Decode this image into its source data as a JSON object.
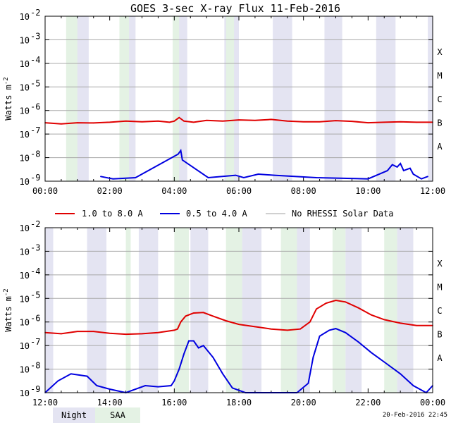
{
  "chart_data": {
    "type": "line",
    "title": "GOES 3-sec X-ray Flux   11-Feb-2016",
    "ylabel": "Watts m",
    "ylabel_sup": "-2",
    "y_scale": "log",
    "ylim_exp": [
      -9,
      -2
    ],
    "y_ticks": [
      {
        "exp": -2,
        "base": "10",
        "sup": "-2"
      },
      {
        "exp": -3,
        "base": "10",
        "sup": "-3"
      },
      {
        "exp": -4,
        "base": "10",
        "sup": "-4"
      },
      {
        "exp": -5,
        "base": "10",
        "sup": "-5"
      },
      {
        "exp": -6,
        "base": "10",
        "sup": "-6"
      },
      {
        "exp": -7,
        "base": "10",
        "sup": "-7"
      },
      {
        "exp": -8,
        "base": "10",
        "sup": "-8"
      },
      {
        "exp": -9,
        "base": "10",
        "sup": "-9"
      }
    ],
    "flare_classes": [
      {
        "label": "X",
        "exp": -3.5
      },
      {
        "label": "M",
        "exp": -4.5
      },
      {
        "label": "C",
        "exp": -5.5
      },
      {
        "label": "B",
        "exp": -6.5
      },
      {
        "label": "A",
        "exp": -7.5
      }
    ],
    "legend": [
      {
        "label": "1.0 to 8.0 A",
        "color": "#e00000"
      },
      {
        "label": "0.5 to 4.0 A",
        "color": "#0000e0"
      },
      {
        "label": "No RHESSI Solar Data",
        "color": "#a0a0a0"
      }
    ],
    "night_color": "#e4e4f2",
    "saa_color": "#e4f2e4",
    "footer": {
      "night_label": "Night",
      "saa_label": "SAA",
      "timestamp": "20-Feb-2016 22:45"
    },
    "panels": [
      {
        "name": "00:00-12:00",
        "xlim": [
          0,
          12
        ],
        "x_ticks": [
          {
            "h": 0,
            "label": "00:00"
          },
          {
            "h": 2,
            "label": "02:00"
          },
          {
            "h": 4,
            "label": "04:00"
          },
          {
            "h": 6,
            "label": "06:00"
          },
          {
            "h": 8,
            "label": "08:00"
          },
          {
            "h": 10,
            "label": "10:00"
          },
          {
            "h": 12,
            "label": "12:00"
          }
        ],
        "night": [
          [
            0.7,
            1.35
          ],
          [
            2.35,
            2.8
          ],
          [
            3.95,
            4.4
          ],
          [
            5.55,
            6.0
          ],
          [
            7.05,
            7.65
          ],
          [
            8.65,
            9.2
          ],
          [
            10.25,
            10.85
          ],
          [
            11.85,
            12.0
          ]
        ],
        "saa": [
          [
            0.65,
            1.0
          ],
          [
            2.3,
            2.6
          ],
          [
            3.95,
            4.15
          ],
          [
            5.6,
            5.85
          ]
        ],
        "long_series": [
          [
            0.0,
            -6.52
          ],
          [
            0.5,
            -6.57
          ],
          [
            1.0,
            -6.52
          ],
          [
            1.5,
            -6.53
          ],
          [
            2.0,
            -6.5
          ],
          [
            2.5,
            -6.45
          ],
          [
            3.0,
            -6.48
          ],
          [
            3.5,
            -6.45
          ],
          [
            3.85,
            -6.5
          ],
          [
            4.0,
            -6.45
          ],
          [
            4.15,
            -6.3
          ],
          [
            4.3,
            -6.45
          ],
          [
            4.6,
            -6.5
          ],
          [
            5.0,
            -6.42
          ],
          [
            5.5,
            -6.45
          ],
          [
            6.0,
            -6.4
          ],
          [
            6.5,
            -6.42
          ],
          [
            7.0,
            -6.38
          ],
          [
            7.5,
            -6.45
          ],
          [
            8.0,
            -6.48
          ],
          [
            8.5,
            -6.48
          ],
          [
            9.0,
            -6.43
          ],
          [
            9.5,
            -6.46
          ],
          [
            10.0,
            -6.52
          ],
          [
            10.5,
            -6.5
          ],
          [
            11.0,
            -6.48
          ],
          [
            11.5,
            -6.5
          ],
          [
            12.0,
            -6.5
          ]
        ],
        "short_series": [
          [
            1.72,
            -8.8
          ],
          [
            2.1,
            -8.9
          ],
          [
            2.8,
            -8.85
          ],
          [
            4.12,
            -7.85
          ],
          [
            4.2,
            -7.7
          ],
          [
            4.25,
            -8.1
          ],
          [
            5.05,
            -8.85
          ],
          [
            5.9,
            -8.75
          ],
          [
            6.15,
            -8.85
          ],
          [
            6.6,
            -8.7
          ],
          [
            7.1,
            -8.75
          ],
          [
            8.4,
            -8.85
          ],
          [
            10.0,
            -8.9
          ],
          [
            10.6,
            -8.55
          ],
          [
            10.75,
            -8.3
          ],
          [
            10.9,
            -8.4
          ],
          [
            11.0,
            -8.25
          ],
          [
            11.1,
            -8.55
          ],
          [
            11.3,
            -8.45
          ],
          [
            11.4,
            -8.7
          ],
          [
            11.65,
            -8.9
          ],
          [
            11.85,
            -8.8
          ]
        ]
      },
      {
        "name": "12:00-24:00",
        "xlim": [
          12,
          24
        ],
        "x_ticks": [
          {
            "h": 12,
            "label": "12:00"
          },
          {
            "h": 14,
            "label": "14:00"
          },
          {
            "h": 16,
            "label": "16:00"
          },
          {
            "h": 18,
            "label": "18:00"
          },
          {
            "h": 20,
            "label": "20:00"
          },
          {
            "h": 22,
            "label": "22:00"
          },
          {
            "h": 24,
            "label": "00:00"
          }
        ],
        "night": [
          [
            12.0,
            12.25
          ],
          [
            13.3,
            13.9
          ],
          [
            14.9,
            15.5
          ],
          [
            16.5,
            17.05
          ],
          [
            18.1,
            18.7
          ],
          [
            19.7,
            20.2
          ],
          [
            21.3,
            21.8
          ],
          [
            22.9,
            23.4
          ]
        ],
        "saa": [
          [
            14.5,
            14.65
          ],
          [
            16.0,
            16.45
          ],
          [
            17.6,
            18.1
          ],
          [
            19.3,
            19.8
          ],
          [
            20.9,
            21.3
          ],
          [
            22.5,
            22.9
          ]
        ],
        "long_series": [
          [
            12.0,
            -6.45
          ],
          [
            12.5,
            -6.5
          ],
          [
            13.0,
            -6.4
          ],
          [
            13.5,
            -6.4
          ],
          [
            14.0,
            -6.48
          ],
          [
            14.5,
            -6.52
          ],
          [
            15.0,
            -6.5
          ],
          [
            15.5,
            -6.45
          ],
          [
            16.0,
            -6.35
          ],
          [
            16.1,
            -6.3
          ],
          [
            16.2,
            -6.0
          ],
          [
            16.35,
            -5.75
          ],
          [
            16.6,
            -5.62
          ],
          [
            16.9,
            -5.6
          ],
          [
            17.2,
            -5.75
          ],
          [
            17.6,
            -5.95
          ],
          [
            18.0,
            -6.1
          ],
          [
            18.5,
            -6.2
          ],
          [
            19.0,
            -6.3
          ],
          [
            19.5,
            -6.35
          ],
          [
            19.9,
            -6.3
          ],
          [
            20.2,
            -6.0
          ],
          [
            20.4,
            -5.45
          ],
          [
            20.7,
            -5.2
          ],
          [
            21.0,
            -5.08
          ],
          [
            21.3,
            -5.15
          ],
          [
            21.7,
            -5.4
          ],
          [
            22.1,
            -5.7
          ],
          [
            22.5,
            -5.9
          ],
          [
            23.0,
            -6.05
          ],
          [
            23.5,
            -6.15
          ],
          [
            24.0,
            -6.15
          ]
        ],
        "short_series": [
          [
            12.0,
            -9.0
          ],
          [
            12.4,
            -8.5
          ],
          [
            12.8,
            -8.2
          ],
          [
            13.3,
            -8.3
          ],
          [
            13.6,
            -8.7
          ],
          [
            14.0,
            -8.85
          ],
          [
            14.5,
            -9.0
          ],
          [
            15.1,
            -8.7
          ],
          [
            15.5,
            -8.75
          ],
          [
            15.9,
            -8.7
          ],
          [
            16.0,
            -8.5
          ],
          [
            16.15,
            -8.0
          ],
          [
            16.3,
            -7.35
          ],
          [
            16.45,
            -6.8
          ],
          [
            16.6,
            -6.8
          ],
          [
            16.75,
            -7.1
          ],
          [
            16.9,
            -7.0
          ],
          [
            17.2,
            -7.5
          ],
          [
            17.5,
            -8.2
          ],
          [
            17.8,
            -8.8
          ],
          [
            18.2,
            -9.0
          ],
          [
            19.0,
            -9.0
          ],
          [
            19.8,
            -9.0
          ],
          [
            20.15,
            -8.6
          ],
          [
            20.3,
            -7.5
          ],
          [
            20.5,
            -6.6
          ],
          [
            20.8,
            -6.35
          ],
          [
            21.0,
            -6.28
          ],
          [
            21.3,
            -6.45
          ],
          [
            21.7,
            -6.85
          ],
          [
            22.1,
            -7.3
          ],
          [
            22.5,
            -7.7
          ],
          [
            23.0,
            -8.2
          ],
          [
            23.4,
            -8.7
          ],
          [
            23.8,
            -9.0
          ],
          [
            24.0,
            -8.7
          ]
        ]
      }
    ]
  }
}
